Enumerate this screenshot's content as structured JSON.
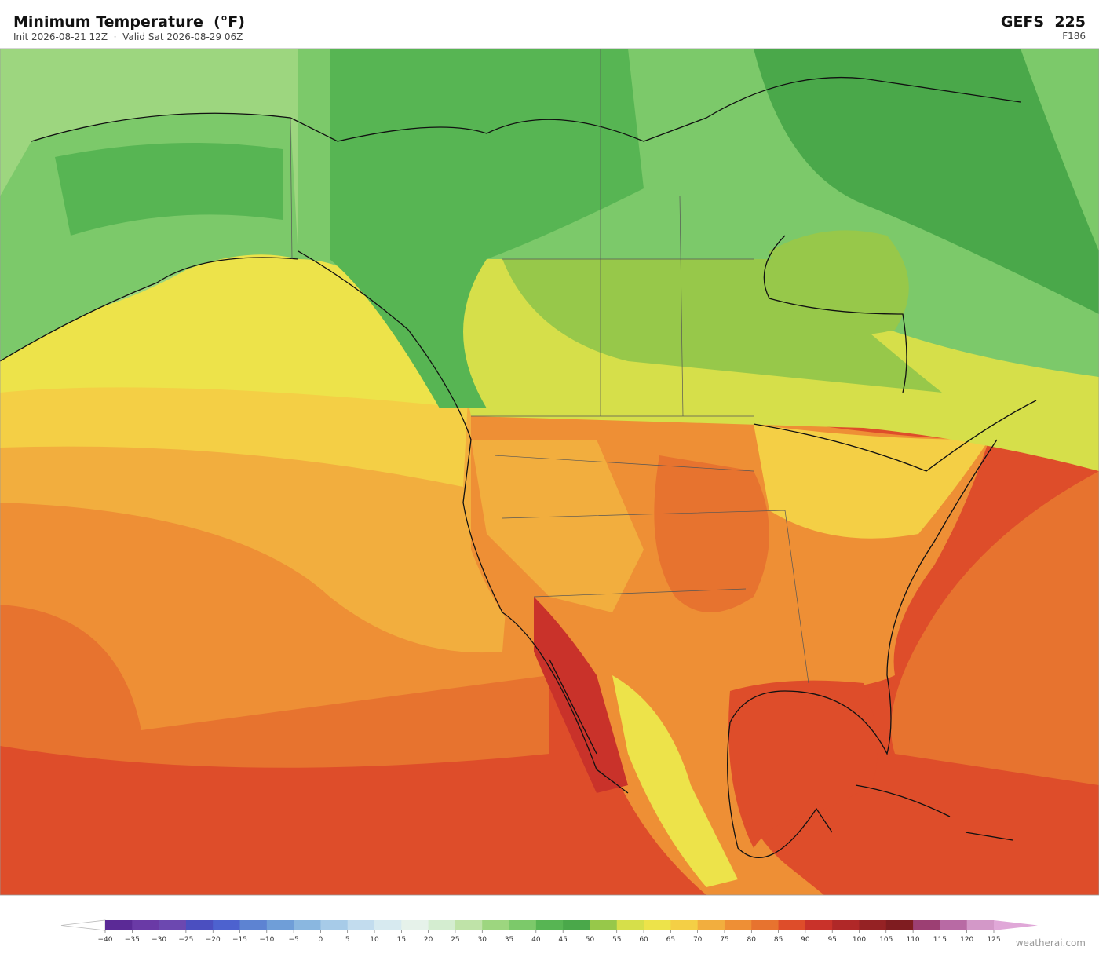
{
  "header": {
    "title": "Minimum Temperature  (°F)",
    "subtitle": "Init 2026-08-21 12Z  ·  Valid Sat 2026-08-29 06Z",
    "model": "GEFS  225",
    "forecast_hour": "F186"
  },
  "colorbar": {
    "ticks": [
      {
        "value": -40,
        "label": "−40"
      },
      {
        "value": -35,
        "label": "−35"
      },
      {
        "value": -30,
        "label": "−30"
      },
      {
        "value": -25,
        "label": "−25"
      },
      {
        "value": -20,
        "label": "−20"
      },
      {
        "value": -15,
        "label": "−15"
      },
      {
        "value": -10,
        "label": "−10"
      },
      {
        "value": -5,
        "label": "−5"
      },
      0,
      5,
      10,
      15,
      20,
      25,
      30,
      35,
      40,
      45,
      50,
      55,
      60,
      65,
      70,
      75,
      80,
      85,
      90,
      95,
      100,
      105,
      110,
      115,
      120,
      125
    ],
    "colors": [
      "#5b2a96",
      "#6a3aa6",
      "#6c48b0",
      "#4b4fc0",
      "#4d62cf",
      "#5d83d2",
      "#6f9ed8",
      "#8ab7e0",
      "#a7cbe8",
      "#c2dcee",
      "#d7eaf0",
      "#e6f2ea",
      "#d4edd0",
      "#bfe3a8",
      "#9dd67f",
      "#7cc96a",
      "#57b553",
      "#4aa84a",
      "#97c84a",
      "#d6df4a",
      "#ede34a",
      "#f4cf45",
      "#f2ae3e",
      "#ee8f35",
      "#e7732f",
      "#de4d2a",
      "#c9322a",
      "#b02828",
      "#952224",
      "#7f1c20",
      "#9c3f73",
      "#b86aa4",
      "#d398c8"
    ],
    "under_color": "#ffffff",
    "over_color": "#e0a8d8"
  },
  "footer": {
    "credit": "weatherai.com"
  }
}
